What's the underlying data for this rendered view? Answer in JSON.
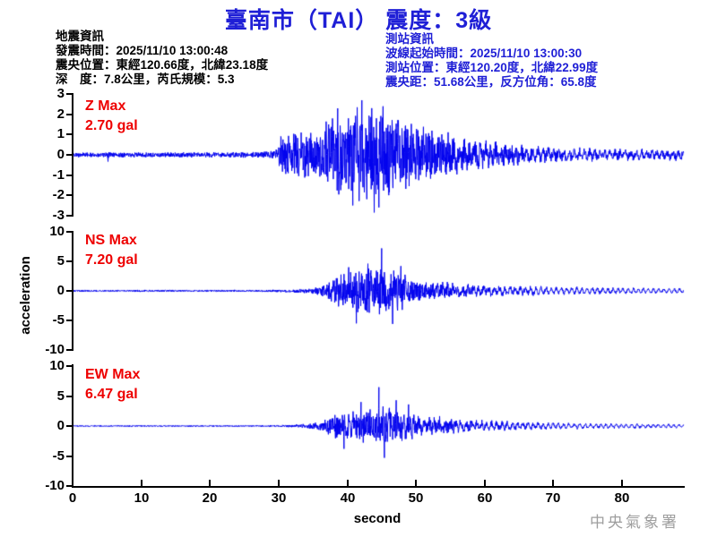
{
  "title": "臺南市（TAI） 震度：3級",
  "event_info": {
    "heading": "地震資訊",
    "lines": [
      "發震時間：2025/11/10 13:00:48",
      "震央位置：東經120.66度，北緯23.18度",
      "深　度：7.8公里，芮氏規模：5.3"
    ]
  },
  "station_info": {
    "heading": "測站資訊",
    "lines": [
      "波線起始時間：2025/11/10 13:00:30",
      "測站位置：東經120.20度，北緯22.99度",
      "震央距：51.68公里，反方位角：65.8度"
    ]
  },
  "watermark": "中央氣象署",
  "colors": {
    "title_blue": "#1f1fd6",
    "trace_blue": "#0000ee",
    "max_red": "#ee0000",
    "axis_black": "#000000",
    "watermark_gray": "#9e9e9e"
  },
  "chart_data": {
    "type": "line",
    "title": "臺南市（TAI） 震度：3級",
    "xlabel": "second",
    "ylabel": "acceleration",
    "x_range": [
      0,
      89
    ],
    "x_ticks": [
      0,
      10,
      20,
      30,
      40,
      50,
      60,
      70,
      80
    ],
    "grid": false,
    "traces": [
      {
        "name": "Z",
        "max_label": "Z Max",
        "max_text": "2.70 gal",
        "max_value": 2.7,
        "units": "gal",
        "ylim": [
          -3,
          3
        ],
        "y_ticks": [
          3,
          2,
          1,
          0,
          -1,
          -2,
          -3
        ],
        "seed": 11,
        "coda_mix": 0.35,
        "clamp": 2.92,
        "envelope": [
          [
            0,
            0.13
          ],
          [
            4.8,
            0.13
          ],
          [
            5.1,
            0.4
          ],
          [
            5.5,
            0.13
          ],
          [
            27,
            0.15
          ],
          [
            29,
            0.2
          ],
          [
            29.8,
            0.5
          ],
          [
            30.3,
            1.2
          ],
          [
            32,
            1.15
          ],
          [
            34,
            1.3
          ],
          [
            36,
            1.55
          ],
          [
            38,
            2.1
          ],
          [
            40,
            2.45
          ],
          [
            42,
            2.6
          ],
          [
            44,
            2.7
          ],
          [
            46,
            2.55
          ],
          [
            48,
            2.1
          ],
          [
            50,
            1.8
          ],
          [
            53,
            1.4
          ],
          [
            56,
            1.1
          ],
          [
            60,
            0.85
          ],
          [
            64,
            0.65
          ],
          [
            68,
            0.5
          ],
          [
            73,
            0.4
          ],
          [
            80,
            0.34
          ],
          [
            89,
            0.3
          ]
        ],
        "spikes": [
          [
            42.1,
            2.7
          ],
          [
            40.8,
            -2.5
          ],
          [
            43.9,
            -2.85
          ],
          [
            45.2,
            2.4
          ],
          [
            38.6,
            2.3
          ],
          [
            44.6,
            -2.6
          ]
        ]
      },
      {
        "name": "NS",
        "max_label": "NS Max",
        "max_text": "7.20 gal",
        "max_value": 7.2,
        "units": "gal",
        "ylim": [
          -10,
          10
        ],
        "y_ticks": [
          10,
          5,
          0,
          -5,
          -10
        ],
        "seed": 23,
        "coda_mix": 0.55,
        "clamp": 9.5,
        "envelope": [
          [
            0,
            0.15
          ],
          [
            10,
            0.18
          ],
          [
            20,
            0.17
          ],
          [
            27,
            0.17
          ],
          [
            30,
            0.25
          ],
          [
            33,
            0.35
          ],
          [
            35,
            0.5
          ],
          [
            36.5,
            1.0
          ],
          [
            38,
            2.2
          ],
          [
            39.5,
            3.2
          ],
          [
            41,
            4.2
          ],
          [
            43,
            4.4
          ],
          [
            45,
            5.0
          ],
          [
            46.5,
            4.6
          ],
          [
            48,
            3.4
          ],
          [
            50,
            2.6
          ],
          [
            52,
            2.1
          ],
          [
            55,
            1.7
          ],
          [
            58,
            1.35
          ],
          [
            62,
            1.1
          ],
          [
            66,
            0.95
          ],
          [
            70,
            0.8
          ],
          [
            75,
            0.7
          ],
          [
            80,
            0.6
          ],
          [
            89,
            0.5
          ]
        ],
        "spikes": [
          [
            45.0,
            7.2
          ],
          [
            41.3,
            -5.5
          ],
          [
            46.6,
            -5.6
          ],
          [
            43.0,
            4.6
          ],
          [
            47.8,
            4.2
          ],
          [
            40.2,
            4.0
          ]
        ]
      },
      {
        "name": "EW",
        "max_label": "EW Max",
        "max_text": "6.47 gal",
        "max_value": 6.47,
        "units": "gal",
        "ylim": [
          -10,
          10
        ],
        "y_ticks": [
          10,
          5,
          0,
          -5,
          -10
        ],
        "seed": 37,
        "coda_mix": 0.55,
        "clamp": 9.5,
        "envelope": [
          [
            0,
            0.12
          ],
          [
            28,
            0.13
          ],
          [
            31,
            0.2
          ],
          [
            33,
            0.3
          ],
          [
            35,
            0.55
          ],
          [
            36.5,
            1.0
          ],
          [
            38,
            2.2
          ],
          [
            40,
            2.7
          ],
          [
            42,
            3.0
          ],
          [
            44,
            3.6
          ],
          [
            45,
            3.9
          ],
          [
            46,
            3.5
          ],
          [
            48,
            2.8
          ],
          [
            50,
            2.3
          ],
          [
            52,
            1.9
          ],
          [
            55,
            1.5
          ],
          [
            58,
            1.2
          ],
          [
            62,
            1.0
          ],
          [
            66,
            0.82
          ],
          [
            70,
            0.65
          ],
          [
            75,
            0.52
          ],
          [
            82,
            0.44
          ],
          [
            89,
            0.38
          ]
        ],
        "spikes": [
          [
            44.6,
            6.47
          ],
          [
            45.4,
            -5.3
          ],
          [
            42.0,
            4.0
          ],
          [
            47.1,
            4.3
          ],
          [
            39.5,
            -3.8
          ],
          [
            48.9,
            3.6
          ]
        ]
      }
    ]
  }
}
